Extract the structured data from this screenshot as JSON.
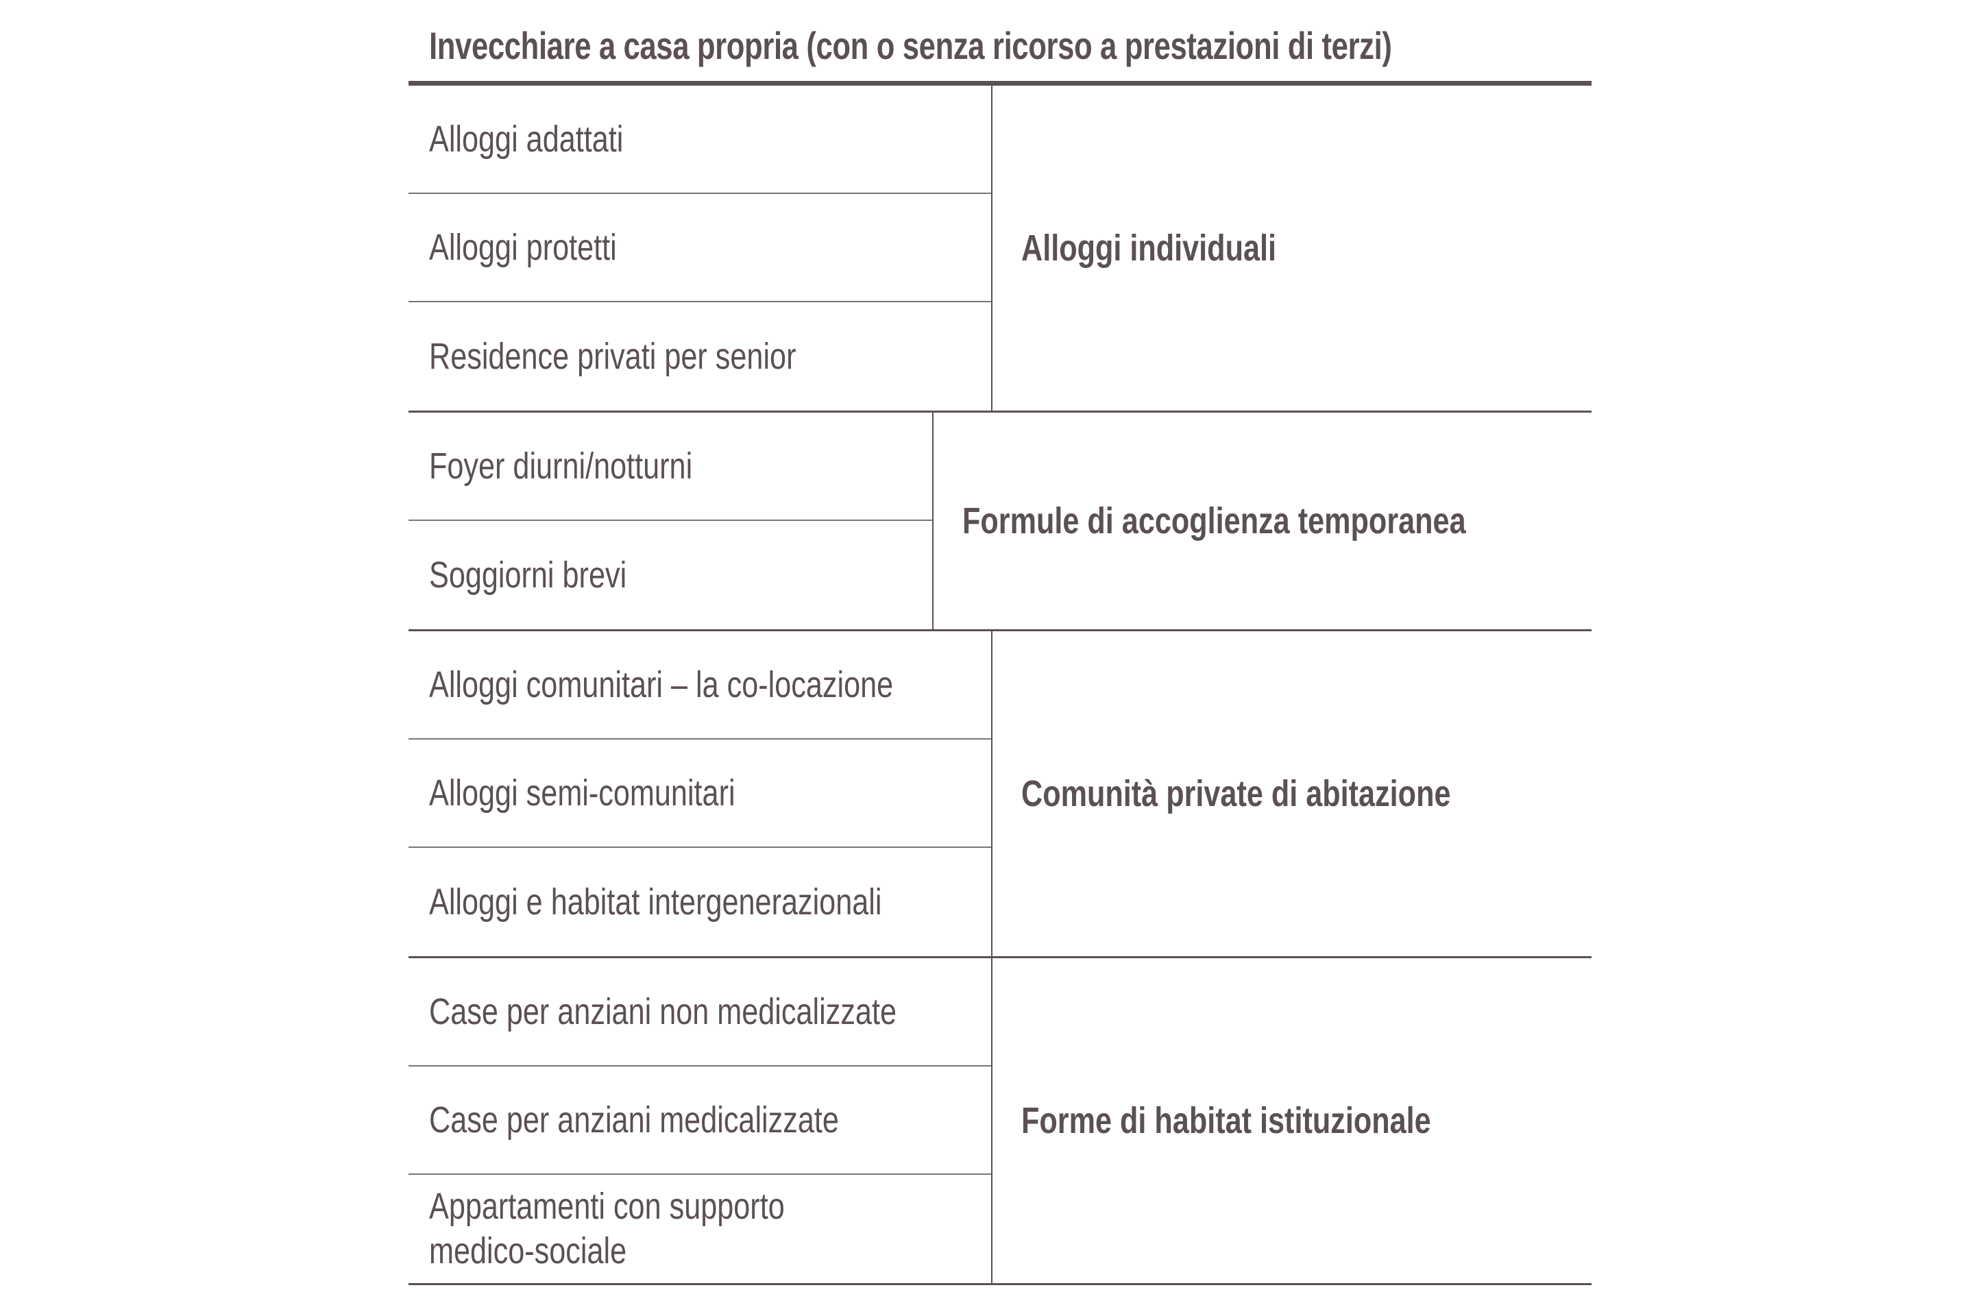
{
  "title": "Invecchiare a casa propria (con o senza ricorso a prestazioni di terzi)",
  "groups": [
    {
      "label": "Alloggi individuali",
      "items": [
        "Alloggi adattati",
        "Alloggi protetti",
        "Residence privati per senior"
      ]
    },
    {
      "label": "Formule di accoglienza temporanea",
      "items": [
        "Foyer diurni/notturni",
        "Soggiorni brevi"
      ]
    },
    {
      "label": "Comunità private di abitazione",
      "items": [
        "Alloggi comunitari – la co-locazione",
        "Alloggi semi-comunitari",
        "Alloggi e habitat intergenerazionali"
      ]
    },
    {
      "label": "Forme di habitat istituzionale",
      "items": [
        "Case per anziani non medicalizzate",
        "Case per anziani medicalizzate",
        "Appartamenti con supporto medico-sociale"
      ]
    }
  ]
}
